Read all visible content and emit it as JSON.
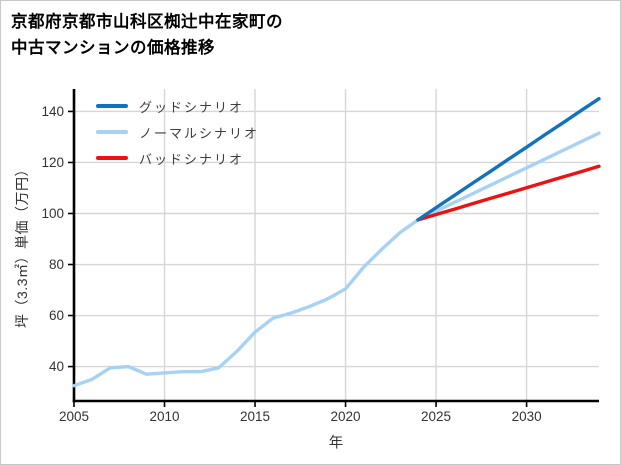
{
  "header": {
    "title_line1": "京都府京都市山科区椥辻中在家町の",
    "title_line2": "中古マンションの価格推移"
  },
  "chart_data": {
    "type": "line",
    "title": "京都府京都市山科区椥辻中在家町の中古マンションの価格推移",
    "xlabel": "年",
    "ylabel": "坪（3.3㎡）単価（万円）",
    "xlim": [
      2005,
      2034
    ],
    "ylim": [
      26.5,
      148.8
    ],
    "xticks": [
      2005,
      2010,
      2015,
      2020,
      2025,
      2030
    ],
    "yticks": [
      40,
      60,
      80,
      100,
      120,
      140
    ],
    "grid": true,
    "legend_position": "top-left",
    "colors": {
      "grid": "#d6d6d6",
      "axis": "#000000",
      "tick_label": "#333333"
    },
    "series": [
      {
        "id": "good",
        "name": "グッドシナリオ",
        "color": "#1272bd",
        "x": [
          2024,
          2025,
          2026,
          2027,
          2028,
          2029,
          2030,
          2031,
          2032,
          2033,
          2034
        ],
        "y": [
          97.5,
          102.3,
          107.0,
          111.8,
          116.5,
          121.3,
          126.0,
          130.8,
          135.5,
          140.3,
          145.0
        ]
      },
      {
        "id": "normal",
        "name": "ノーマルシナリオ",
        "color": "#a8d2f4",
        "x": [
          2005,
          2006,
          2007,
          2008,
          2009,
          2010,
          2011,
          2012,
          2013,
          2014,
          2015,
          2016,
          2017,
          2018,
          2019,
          2020,
          2021,
          2022,
          2023,
          2024,
          2025,
          2026,
          2027,
          2028,
          2029,
          2030,
          2031,
          2032,
          2033,
          2034
        ],
        "y": [
          32.5,
          35.0,
          39.5,
          40.0,
          37.0,
          37.5,
          38.0,
          38.0,
          39.5,
          46.0,
          53.5,
          59.0,
          61.0,
          63.5,
          66.5,
          70.5,
          79.0,
          86.0,
          92.5,
          97.5,
          100.9,
          104.3,
          107.7,
          111.1,
          114.5,
          117.9,
          121.3,
          124.7,
          128.1,
          131.5
        ]
      },
      {
        "id": "bad",
        "name": "バッドシナリオ",
        "color": "#ee1111",
        "x": [
          2024,
          2025,
          2026,
          2027,
          2028,
          2029,
          2030,
          2031,
          2032,
          2033,
          2034
        ],
        "y": [
          97.5,
          99.6,
          101.7,
          103.8,
          105.9,
          108.0,
          110.1,
          112.2,
          114.3,
          116.4,
          118.5
        ]
      }
    ]
  }
}
